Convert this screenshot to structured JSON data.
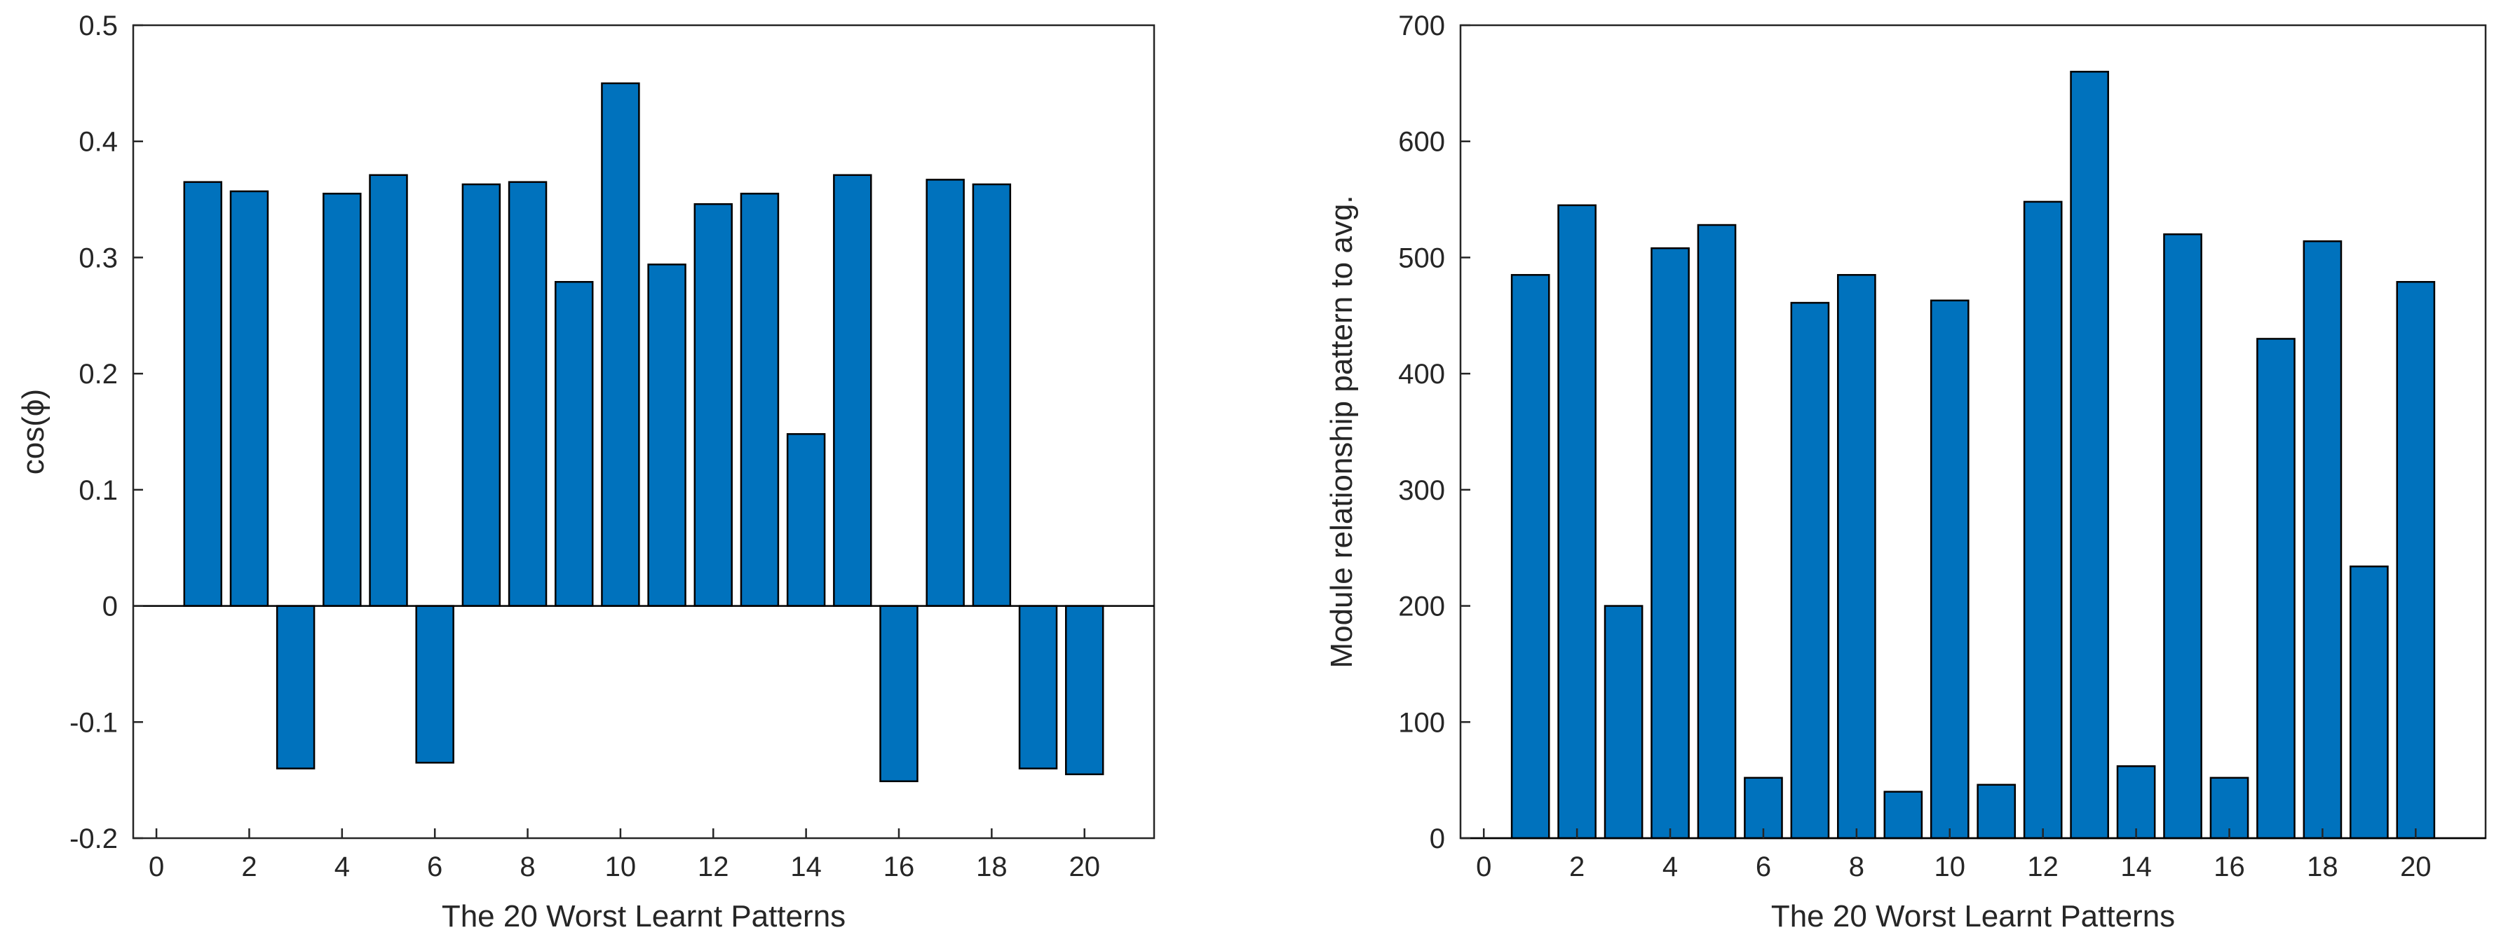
{
  "colors": {
    "bar": "#0072bd",
    "axis": "#262626",
    "background": "#ffffff"
  },
  "chart_data": [
    {
      "type": "bar",
      "x": [
        1,
        2,
        3,
        4,
        5,
        6,
        7,
        8,
        9,
        10,
        11,
        12,
        13,
        14,
        15,
        16,
        17,
        18,
        19,
        20
      ],
      "values": [
        0.365,
        0.357,
        -0.14,
        0.355,
        0.371,
        -0.135,
        0.363,
        0.365,
        0.279,
        0.45,
        0.294,
        0.346,
        0.355,
        0.148,
        0.371,
        -0.151,
        0.367,
        0.363,
        -0.14,
        -0.145
      ],
      "xlabel": "The 20 Worst Learnt Patterns",
      "ylabel": "cos(ϕ)",
      "xlim": [
        -0.5,
        21.5
      ],
      "ylim": [
        -0.2,
        0.5
      ],
      "xticks": [
        0,
        2,
        4,
        6,
        8,
        10,
        12,
        14,
        16,
        18,
        20
      ],
      "yticks": [
        -0.2,
        -0.1,
        0,
        0.1,
        0.2,
        0.3,
        0.4,
        0.5
      ],
      "ytick_labels": [
        "-0.2",
        "-0.1",
        "0",
        "0.1",
        "0.2",
        "0.3",
        "0.4",
        "0.5"
      ],
      "grid": false
    },
    {
      "type": "bar",
      "x": [
        1,
        2,
        3,
        4,
        5,
        6,
        7,
        8,
        9,
        10,
        11,
        12,
        13,
        14,
        15,
        16,
        17,
        18,
        19,
        20
      ],
      "values": [
        485,
        545,
        200,
        508,
        528,
        52,
        461,
        485,
        40,
        463,
        46,
        548,
        660,
        62,
        520,
        52,
        430,
        514,
        234,
        479
      ],
      "xlabel": "The 20 Worst Learnt Patterns",
      "ylabel": "Module relationship pattern to avg.",
      "xlim": [
        -0.5,
        21.5
      ],
      "ylim": [
        0,
        700
      ],
      "xticks": [
        0,
        2,
        4,
        6,
        8,
        10,
        12,
        14,
        16,
        18,
        20
      ],
      "yticks": [
        0,
        100,
        200,
        300,
        400,
        500,
        600,
        700
      ],
      "ytick_labels": [
        "0",
        "100",
        "200",
        "300",
        "400",
        "500",
        "600",
        "700"
      ],
      "grid": false
    }
  ]
}
